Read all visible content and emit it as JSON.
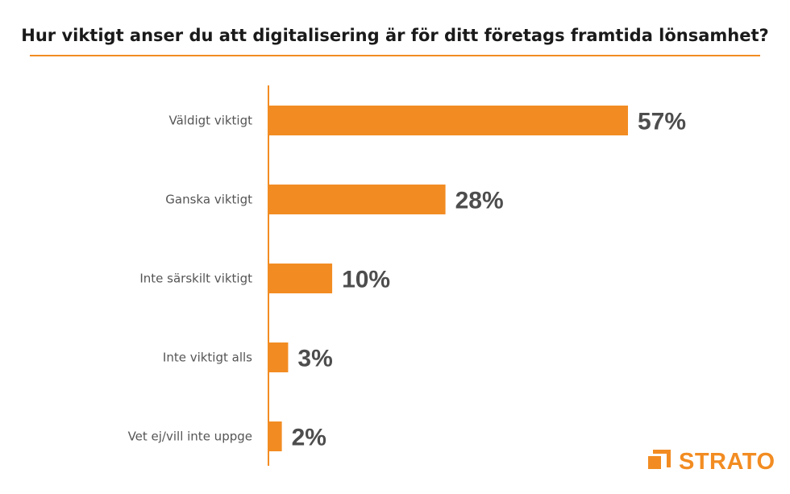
{
  "chart_data": {
    "type": "bar",
    "orientation": "horizontal",
    "title": "Hur viktigt anser du att digitalisering är för ditt företags framtida lönsamhet?",
    "categories": [
      "Väldigt viktigt",
      "Ganska viktigt",
      "Inte särskilt viktigt",
      "Inte viktigt alls",
      "Vet ej/vill inte uppge"
    ],
    "values": [
      57,
      28,
      10,
      3,
      2
    ],
    "value_labels": [
      "57%",
      "28%",
      "10%",
      "3%",
      "2%"
    ],
    "xlim": [
      0,
      57
    ],
    "grid": false,
    "bar_color": "#f28c22",
    "axis_color": "#f28c22"
  },
  "brand": {
    "logo_text": "STRATO",
    "logo_icon": "strato-logo-icon"
  }
}
